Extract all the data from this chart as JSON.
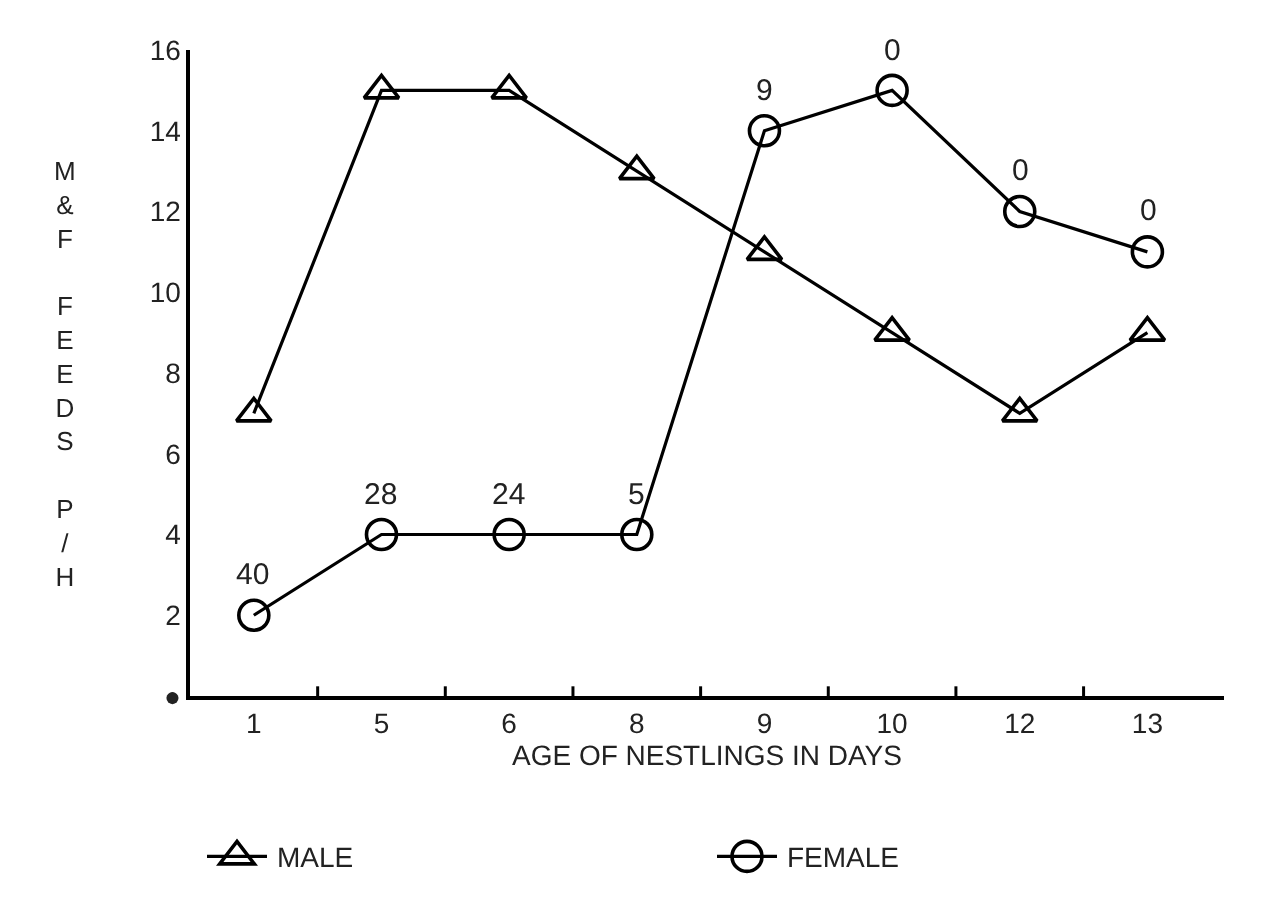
{
  "chart_data": {
    "type": "line",
    "xlabel": "AGE OF NESTLINGS IN DAYS",
    "ylabel": "M&F FEEDS P/H",
    "categories": [
      "1",
      "5",
      "6",
      "8",
      "9",
      "10",
      "12",
      "13"
    ],
    "series": [
      {
        "name": "MALE",
        "color": "#000000",
        "marker": "triangle",
        "values": [
          7,
          15,
          15,
          13,
          11,
          9,
          7,
          9
        ]
      },
      {
        "name": "FEMALE",
        "color": "#000000",
        "marker": "circle",
        "values": [
          2,
          4,
          4,
          4,
          14,
          15,
          12,
          11
        ]
      }
    ],
    "ylim": [
      0,
      16
    ],
    "yticks": [
      {
        "value": 0,
        "label": "●"
      },
      2,
      4,
      6,
      8,
      10,
      12,
      14,
      16
    ],
    "annotations": [
      {
        "text": "40",
        "x": "1",
        "y": 2
      },
      {
        "text": "28",
        "x": "5",
        "y": 4
      },
      {
        "text": "24",
        "x": "6",
        "y": 4
      },
      {
        "text": "5",
        "x": "8",
        "y": 4
      },
      {
        "text": "9",
        "x": "9",
        "y": 14
      },
      {
        "text": "0",
        "x": "10",
        "y": 15
      },
      {
        "text": "0",
        "x": "12",
        "y": 12
      },
      {
        "text": "0",
        "x": "13",
        "y": 11
      }
    ],
    "legend": "bottom",
    "line_style": "solid"
  }
}
